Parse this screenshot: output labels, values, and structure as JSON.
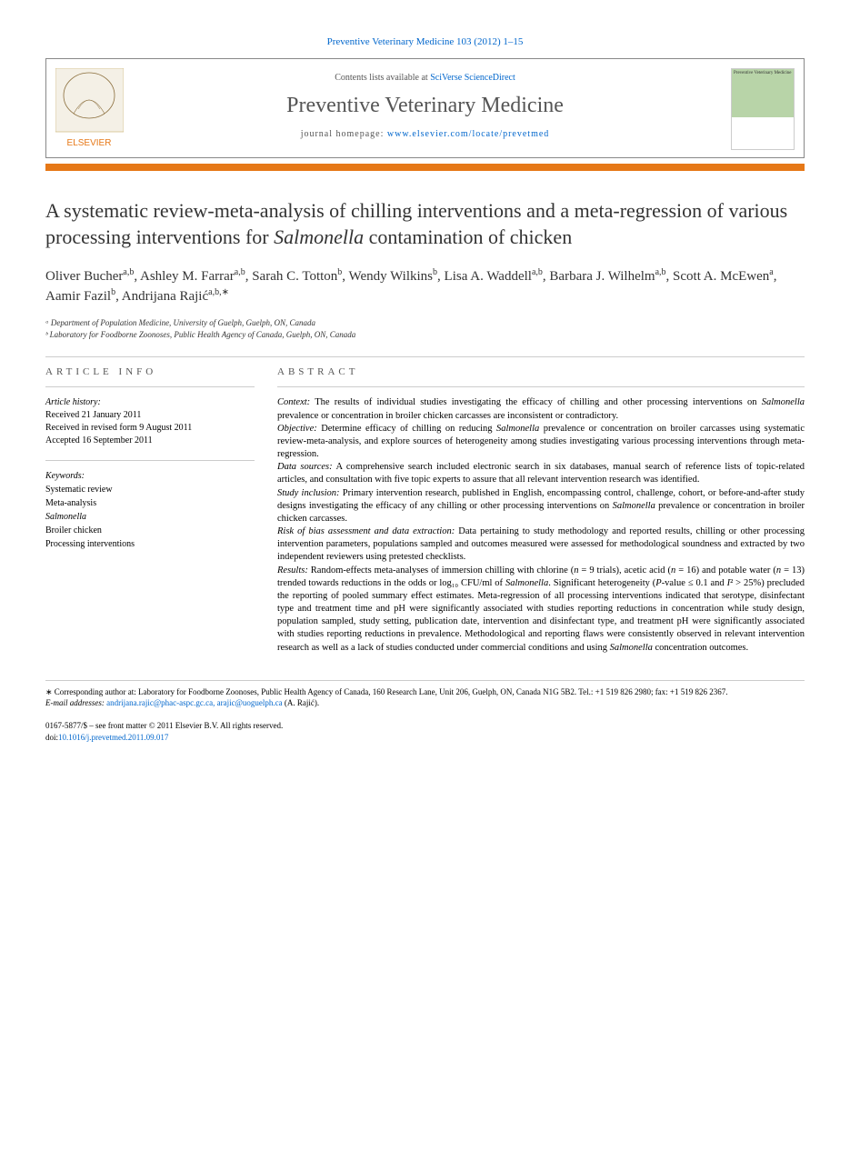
{
  "header": {
    "citation": "Preventive Veterinary Medicine 103 (2012) 1–15",
    "contents_prefix": "Contents lists available at ",
    "contents_link": "SciVerse ScienceDirect",
    "journal_name": "Preventive Veterinary Medicine",
    "homepage_prefix": "journal homepage: ",
    "homepage_url": "www.elsevier.com/locate/prevetmed",
    "elsevier_label": "ELSEVIER",
    "cover_label": "Preventive Veterinary Medicine"
  },
  "article": {
    "title_pre": "A systematic review-meta-analysis of chilling interventions and a meta-regression of various processing interventions for ",
    "title_italic": "Salmonella",
    "title_post": " contamination of chicken",
    "authors_html": "Oliver Bucher<sup>a,b</sup>, Ashley M. Farrar<sup>a,b</sup>, Sarah C. Totton<sup>b</sup>, Wendy Wilkins<sup>b</sup>, Lisa A. Waddell<sup>a,b</sup>, Barbara J. Wilhelm<sup>a,b</sup>, Scott A. McEwen<sup>a</sup>, Aamir Fazil<sup>b</sup>, Andrijana Rajić<sup>a,b,∗</sup>",
    "affiliations": [
      "ᵃ Department of Population Medicine, University of Guelph, Guelph, ON, Canada",
      "ᵇ Laboratory for Foodborne Zoonoses, Public Health Agency of Canada, Guelph, ON, Canada"
    ]
  },
  "article_info": {
    "header": "ARTICLE INFO",
    "history_label": "Article history:",
    "history": [
      "Received 21 January 2011",
      "Received in revised form 9 August 2011",
      "Accepted 16 September 2011"
    ],
    "keywords_label": "Keywords:",
    "keywords": [
      "Systematic review",
      "Meta-analysis",
      "Salmonella",
      "Broiler chicken",
      "Processing interventions"
    ]
  },
  "abstract": {
    "header": "ABSTRACT",
    "paras": [
      {
        "label": "Context:",
        "text": " The results of individual studies investigating the efficacy of chilling and other processing interventions on <i>Salmonella</i> prevalence or concentration in broiler chicken carcasses are inconsistent or contradictory."
      },
      {
        "label": "Objective:",
        "text": " Determine efficacy of chilling on reducing <i>Salmonella</i> prevalence or concentration on broiler carcasses using systematic review-meta-analysis, and explore sources of heterogeneity among studies investigating various processing interventions through meta-regression."
      },
      {
        "label": "Data sources:",
        "text": " A comprehensive search included electronic search in six databases, manual search of reference lists of topic-related articles, and consultation with five topic experts to assure that all relevant intervention research was identified."
      },
      {
        "label": "Study inclusion:",
        "text": " Primary intervention research, published in English, encompassing control, challenge, cohort, or before-and-after study designs investigating the efficacy of any chilling or other processing interventions on <i>Salmonella</i> prevalence or concentration in broiler chicken carcasses."
      },
      {
        "label": "Risk of bias assessment and data extraction:",
        "text": " Data pertaining to study methodology and reported results, chilling or other processing intervention parameters, populations sampled and outcomes measured were assessed for methodological soundness and extracted by two independent reviewers using pretested checklists."
      },
      {
        "label": "Results:",
        "text": " Random-effects meta-analyses of immersion chilling with chlorine (<i>n</i> = 9 trials), acetic acid (<i>n</i> = 16) and potable water (<i>n</i> = 13) trended towards reductions in the odds or log₁₀ CFU/ml of <i>Salmonella</i>. Significant heterogeneity (<i>P</i>-value ≤ 0.1 and <i>I</i>² > 25%) precluded the reporting of pooled summary effect estimates. Meta-regression of all processing interventions indicated that serotype, disinfectant type and treatment time and pH were significantly associated with studies reporting reductions in concentration while study design, population sampled, study setting, publication date, intervention and disinfectant type, and treatment pH were significantly associated with studies reporting reductions in prevalence. Methodological and reporting flaws were consistently observed in relevant intervention research as well as a lack of studies conducted under commercial conditions and using <i>Salmonella</i> concentration outcomes."
      }
    ]
  },
  "footnotes": {
    "corresponding": "∗ Corresponding author at: Laboratory for Foodborne Zoonoses, Public Health Agency of Canada, 160 Research Lane, Unit 206, Guelph, ON, Canada N1G 5B2. Tel.: +1 519 826 2980; fax: +1 519 826 2367.",
    "email_label": "E-mail addresses:",
    "emails": "andrijana.rajic@phac-aspc.gc.ca, arajic@uoguelph.ca",
    "email_person": " (A. Rajić)."
  },
  "copyright": {
    "line1": "0167-5877/$ – see front matter © 2011 Elsevier B.V. All rights reserved.",
    "doi_label": "doi:",
    "doi": "10.1016/j.prevetmed.2011.09.017"
  },
  "colors": {
    "link": "#0066cc",
    "orange_bar": "#e67817",
    "text_gray": "#555555",
    "text_dark": "#333333"
  }
}
